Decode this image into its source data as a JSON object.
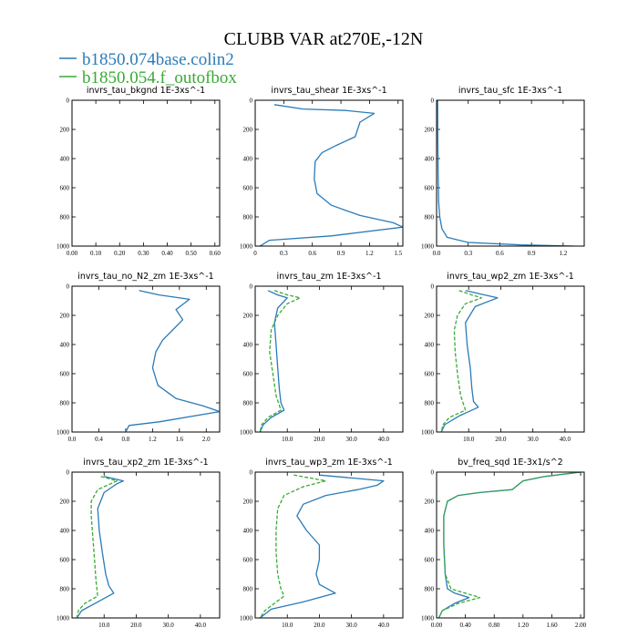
{
  "figure": {
    "title": "CLUBB VAR at270E,-12N",
    "legend": [
      {
        "label": "b1850.074base.colin2",
        "color": "#2a7bb8"
      },
      {
        "label": "b1850.054.f_outofbox",
        "color": "#3aaa35"
      }
    ]
  },
  "chart_data": [
    {
      "type": "line",
      "title": "invrs_tau_bkgnd   1E-3xs^-1",
      "xlim": [
        0,
        0.62
      ],
      "ylim": [
        1000,
        0
      ],
      "xticks": [
        0,
        0.1,
        0.2,
        0.3,
        0.4,
        0.5,
        0.6
      ],
      "xtick_labels": [
        "0.00",
        "0.10",
        "0.20",
        "0.30",
        "0.40",
        "0.50",
        "0.60"
      ],
      "yticks": [
        0,
        200,
        400,
        600,
        800,
        1000
      ],
      "ytick_labels": [
        "0",
        "200",
        "400",
        "600",
        "800",
        "1000"
      ],
      "series": []
    },
    {
      "type": "line",
      "title": "invrs_tau_shear   1E-3xs^-1",
      "xlim": [
        0,
        1.55
      ],
      "ylim": [
        1000,
        0
      ],
      "xticks": [
        0,
        0.3,
        0.6,
        0.9,
        1.2,
        1.5
      ],
      "xtick_labels": [
        "0",
        "0.3",
        "0.6",
        "0.9",
        "1.2",
        "1.5"
      ],
      "yticks": [
        0,
        200,
        400,
        600,
        800,
        1000
      ],
      "ytick_labels": [
        "0",
        "200",
        "400",
        "600",
        "800",
        "1000"
      ],
      "series": [
        {
          "color": "#2a7bb8",
          "dash": "",
          "x": [
            0.2,
            0.5,
            0.95,
            1.25,
            1.1,
            1.05,
            0.85,
            0.7,
            0.63,
            0.62,
            0.65,
            0.8,
            1.1,
            1.45,
            1.55,
            0.8,
            0.15,
            0.05
          ],
          "y": [
            30,
            60,
            70,
            90,
            150,
            250,
            310,
            360,
            420,
            540,
            640,
            720,
            790,
            840,
            870,
            930,
            960,
            1000
          ]
        }
      ]
    },
    {
      "type": "line",
      "title": "invrs_tau_sfc   1E-3xs^-1",
      "xlim": [
        0,
        1.4
      ],
      "ylim": [
        1000,
        0
      ],
      "xticks": [
        0,
        0.3,
        0.6,
        0.9,
        1.2
      ],
      "xtick_labels": [
        "0.0",
        "0.3",
        "0.6",
        "0.9",
        "1.2"
      ],
      "yticks": [
        0,
        200,
        400,
        600,
        800,
        1000
      ],
      "ytick_labels": [
        "0",
        "200",
        "400",
        "600",
        "800",
        "1000"
      ],
      "series": [
        {
          "color": "#2a7bb8",
          "dash": "",
          "x": [
            0.01,
            0.012,
            0.015,
            0.02,
            0.03,
            0.05,
            0.1,
            0.3,
            0.8,
            1.3
          ],
          "y": [
            0,
            300,
            500,
            700,
            800,
            880,
            940,
            975,
            992,
            1000
          ]
        }
      ]
    },
    {
      "type": "line",
      "title": "invrs_tau_no_N2_zm   1E-3xs^-1",
      "xlim": [
        0,
        2.2
      ],
      "ylim": [
        1000,
        0
      ],
      "xticks": [
        0,
        0.4,
        0.8,
        1.2,
        1.6,
        2.0
      ],
      "xtick_labels": [
        "0.0",
        "0.4",
        "0.8",
        "1.2",
        "1.6",
        "2.0"
      ],
      "yticks": [
        0,
        200,
        400,
        600,
        800,
        1000
      ],
      "ytick_labels": [
        "0",
        "200",
        "400",
        "600",
        "800",
        "1000"
      ],
      "series": [
        {
          "color": "#2a7bb8",
          "dash": "",
          "x": [
            1.0,
            1.3,
            1.75,
            1.55,
            1.65,
            1.5,
            1.35,
            1.25,
            1.2,
            1.28,
            1.55,
            1.95,
            2.2,
            1.3,
            0.85,
            0.8
          ],
          "y": [
            30,
            60,
            90,
            160,
            230,
            300,
            370,
            450,
            560,
            680,
            770,
            820,
            860,
            930,
            955,
            1000
          ]
        }
      ]
    },
    {
      "type": "line",
      "title": "invrs_tau_zm   1E-3xs^-1",
      "xlim": [
        0,
        46
      ],
      "ylim": [
        1000,
        0
      ],
      "xticks": [
        10,
        20,
        30,
        40
      ],
      "xtick_labels": [
        "10.0",
        "20.0",
        "30.0",
        "40.0"
      ],
      "yticks": [
        0,
        200,
        400,
        600,
        800,
        1000
      ],
      "ytick_labels": [
        "0",
        "200",
        "400",
        "600",
        "800",
        "1000"
      ],
      "series": [
        {
          "color": "#2a7bb8",
          "dash": "",
          "x": [
            4,
            7,
            10,
            7,
            6,
            6.5,
            7,
            7.5,
            8,
            9,
            5,
            2.5,
            1.5
          ],
          "y": [
            30,
            60,
            80,
            150,
            250,
            400,
            560,
            700,
            800,
            850,
            900,
            950,
            1000
          ]
        },
        {
          "color": "#3aaa35",
          "dash": "4,2",
          "x": [
            6,
            10,
            14,
            10,
            7,
            5,
            4.5,
            5.5,
            6.5,
            8,
            4,
            2,
            1.5
          ],
          "y": [
            30,
            60,
            80,
            120,
            200,
            300,
            450,
            600,
            750,
            850,
            900,
            950,
            1000
          ]
        }
      ]
    },
    {
      "type": "line",
      "title": "invrs_tau_wp2_zm   1E-3xs^-1",
      "xlim": [
        0,
        46
      ],
      "ylim": [
        1000,
        0
      ],
      "xticks": [
        10,
        20,
        30,
        40
      ],
      "xtick_labels": [
        "10.0",
        "20.0",
        "30.0",
        "40.0"
      ],
      "yticks": [
        0,
        200,
        400,
        600,
        800,
        1000
      ],
      "ytick_labels": [
        "0",
        "200",
        "400",
        "600",
        "800",
        "1000"
      ],
      "series": [
        {
          "color": "#2a7bb8",
          "dash": "",
          "x": [
            9,
            15,
            19,
            12,
            9,
            9.5,
            10.5,
            11,
            11.5,
            13,
            7,
            2.5,
            1.5
          ],
          "y": [
            30,
            60,
            80,
            140,
            250,
            400,
            560,
            700,
            790,
            830,
            890,
            950,
            1000
          ]
        },
        {
          "color": "#3aaa35",
          "dash": "4,2",
          "x": [
            7,
            11,
            14,
            9,
            6.5,
            5.5,
            5.8,
            6.5,
            7.5,
            9,
            4,
            2,
            1.5
          ],
          "y": [
            30,
            60,
            80,
            120,
            200,
            300,
            450,
            600,
            750,
            850,
            900,
            950,
            1000
          ]
        }
      ]
    },
    {
      "type": "line",
      "title": "invrs_tau_xp2_zm   1E-3xs^-1",
      "xlim": [
        0,
        46
      ],
      "ylim": [
        1000,
        0
      ],
      "xticks": [
        10,
        20,
        30,
        40
      ],
      "xtick_labels": [
        "10.0",
        "20.0",
        "30.0",
        "40.0"
      ],
      "yticks": [
        0,
        200,
        400,
        600,
        800,
        1000
      ],
      "ytick_labels": [
        "0",
        "200",
        "400",
        "600",
        "800",
        "1000"
      ],
      "series": [
        {
          "color": "#2a7bb8",
          "dash": "",
          "x": [
            10,
            16,
            14,
            10,
            8,
            8.5,
            9.5,
            10.5,
            11.5,
            13,
            8,
            3,
            1.5
          ],
          "y": [
            30,
            60,
            80,
            140,
            250,
            400,
            560,
            700,
            780,
            830,
            890,
            950,
            1000
          ]
        },
        {
          "color": "#3aaa35",
          "dash": "4,2",
          "x": [
            9,
            14,
            12,
            8,
            6,
            6,
            6.5,
            7,
            7.5,
            8,
            4,
            2,
            1.5
          ],
          "y": [
            30,
            60,
            80,
            120,
            200,
            300,
            450,
            600,
            750,
            850,
            900,
            950,
            1000
          ]
        }
      ]
    },
    {
      "type": "line",
      "title": "invrs_tau_wp3_zm   1E-3xs^-1",
      "xlim": [
        0,
        46
      ],
      "ylim": [
        1000,
        0
      ],
      "xticks": [
        10,
        20,
        30,
        40
      ],
      "xtick_labels": [
        "10.0",
        "20.0",
        "30.0",
        "40.0"
      ],
      "yticks": [
        0,
        200,
        400,
        600,
        800,
        1000
      ],
      "ytick_labels": [
        "0",
        "200",
        "400",
        "600",
        "800",
        "1000"
      ],
      "series": [
        {
          "color": "#2a7bb8",
          "dash": "",
          "x": [
            20,
            30,
            40,
            38,
            32,
            22,
            15,
            13,
            16,
            20,
            20,
            19,
            20,
            25,
            15,
            5,
            1.5
          ],
          "y": [
            20,
            40,
            60,
            90,
            120,
            160,
            220,
            300,
            400,
            500,
            600,
            700,
            770,
            830,
            890,
            940,
            1000
          ]
        },
        {
          "color": "#3aaa35",
          "dash": "4,2",
          "x": [
            12,
            17,
            22,
            15,
            9,
            7,
            6.5,
            6.5,
            7,
            8,
            9,
            6,
            3,
            1.5
          ],
          "y": [
            20,
            40,
            60,
            100,
            160,
            250,
            400,
            550,
            700,
            800,
            850,
            900,
            950,
            1000
          ]
        }
      ]
    },
    {
      "type": "line",
      "title": "bv_freq_sqd   1E-3x1/s^2",
      "xlim": [
        0,
        2.05
      ],
      "ylim": [
        1000,
        0
      ],
      "xticks": [
        0,
        0.4,
        0.8,
        1.2,
        1.6,
        2.0
      ],
      "xtick_labels": [
        "0.00",
        "0.40",
        "0.80",
        "1.20",
        "1.60",
        "2.00"
      ],
      "yticks": [
        0,
        200,
        400,
        600,
        800,
        1000
      ],
      "ytick_labels": [
        "0",
        "200",
        "400",
        "600",
        "800",
        "1000"
      ],
      "series": [
        {
          "color": "#2a7bb8",
          "dash": "",
          "x": [
            2.0,
            1.5,
            1.2,
            1.1,
            1.05,
            0.6,
            0.3,
            0.15,
            0.1,
            0.1,
            0.12,
            0.15,
            0.25,
            0.45,
            0.25,
            0.08,
            0.03
          ],
          "y": [
            0,
            30,
            60,
            100,
            120,
            140,
            160,
            200,
            300,
            500,
            700,
            800,
            830,
            860,
            900,
            950,
            1000
          ]
        },
        {
          "color": "#3aaa35",
          "dash": "4,2",
          "x": [
            2.0,
            1.5,
            1.2,
            1.1,
            1.05,
            0.6,
            0.3,
            0.15,
            0.1,
            0.1,
            0.12,
            0.2,
            0.4,
            0.6,
            0.3,
            0.08,
            0.03
          ],
          "y": [
            0,
            30,
            60,
            100,
            120,
            140,
            160,
            200,
            300,
            500,
            700,
            800,
            830,
            860,
            900,
            950,
            1000
          ]
        }
      ]
    }
  ]
}
